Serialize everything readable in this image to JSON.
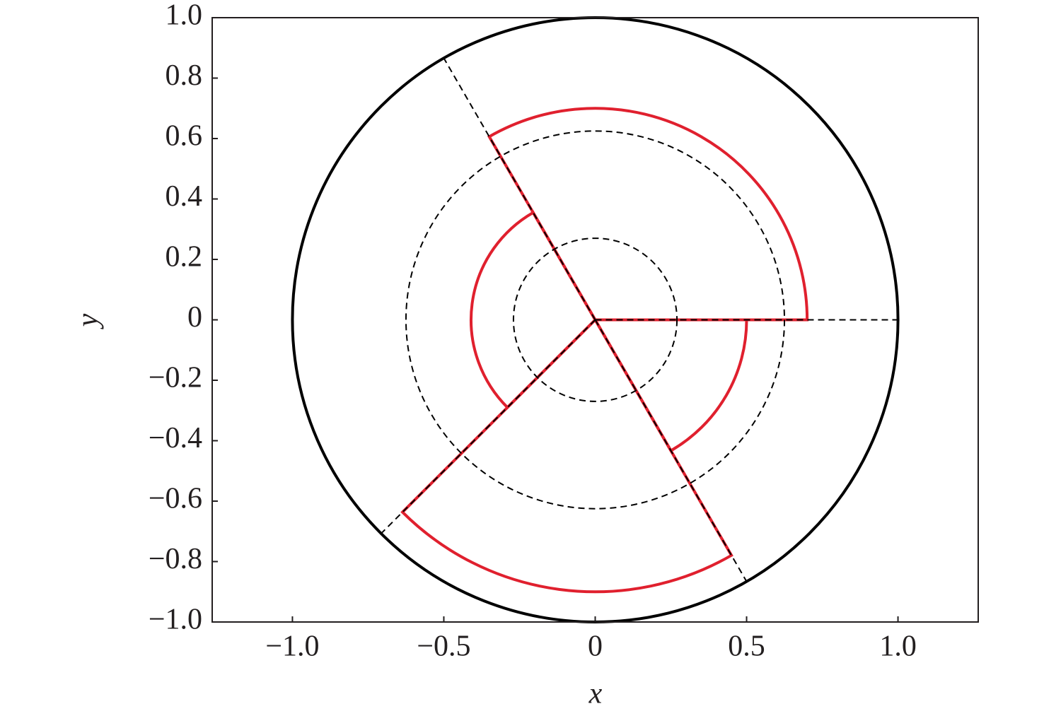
{
  "chart_data": {
    "type": "polar-sectors",
    "xlabel": "x",
    "ylabel": "y",
    "xlim": [
      -1.265,
      1.265
    ],
    "ylim": [
      -1,
      1
    ],
    "xticks": [
      {
        "value": -1,
        "label": "−1.0"
      },
      {
        "value": -0.5,
        "label": "−0.5"
      },
      0,
      0.5,
      {
        "value": 1,
        "label": "1.0"
      }
    ],
    "yticks": [
      {
        "value": -1,
        "label": "−1.0"
      },
      {
        "value": -0.8,
        "label": "−0.8"
      },
      {
        "value": -0.6,
        "label": "−0.6"
      },
      {
        "value": -0.4,
        "label": "−0.4"
      },
      {
        "value": -0.2,
        "label": "−0.2"
      },
      0,
      0.2,
      0.4,
      0.6,
      0.8,
      {
        "value": 1,
        "label": "1.0"
      }
    ],
    "boundary": {
      "radius": 1,
      "color": "#000000"
    },
    "circles": {
      "radii": [
        0.27,
        0.625
      ],
      "color": "#000000",
      "line_style": "dashed"
    },
    "rays": {
      "angles": [
        0,
        120,
        225,
        300
      ],
      "length": 1,
      "color": "#000000",
      "line_style": "dashed"
    },
    "sectors": {
      "color": "#e0202e",
      "items": [
        {
          "start": 0,
          "end": 120,
          "radius": 0.7
        },
        {
          "start": 120,
          "end": 225,
          "radius": 0.41
        },
        {
          "start": 225,
          "end": 300,
          "radius": 0.9
        },
        {
          "start": 300,
          "end": 360,
          "radius": 0.5
        }
      ]
    }
  }
}
